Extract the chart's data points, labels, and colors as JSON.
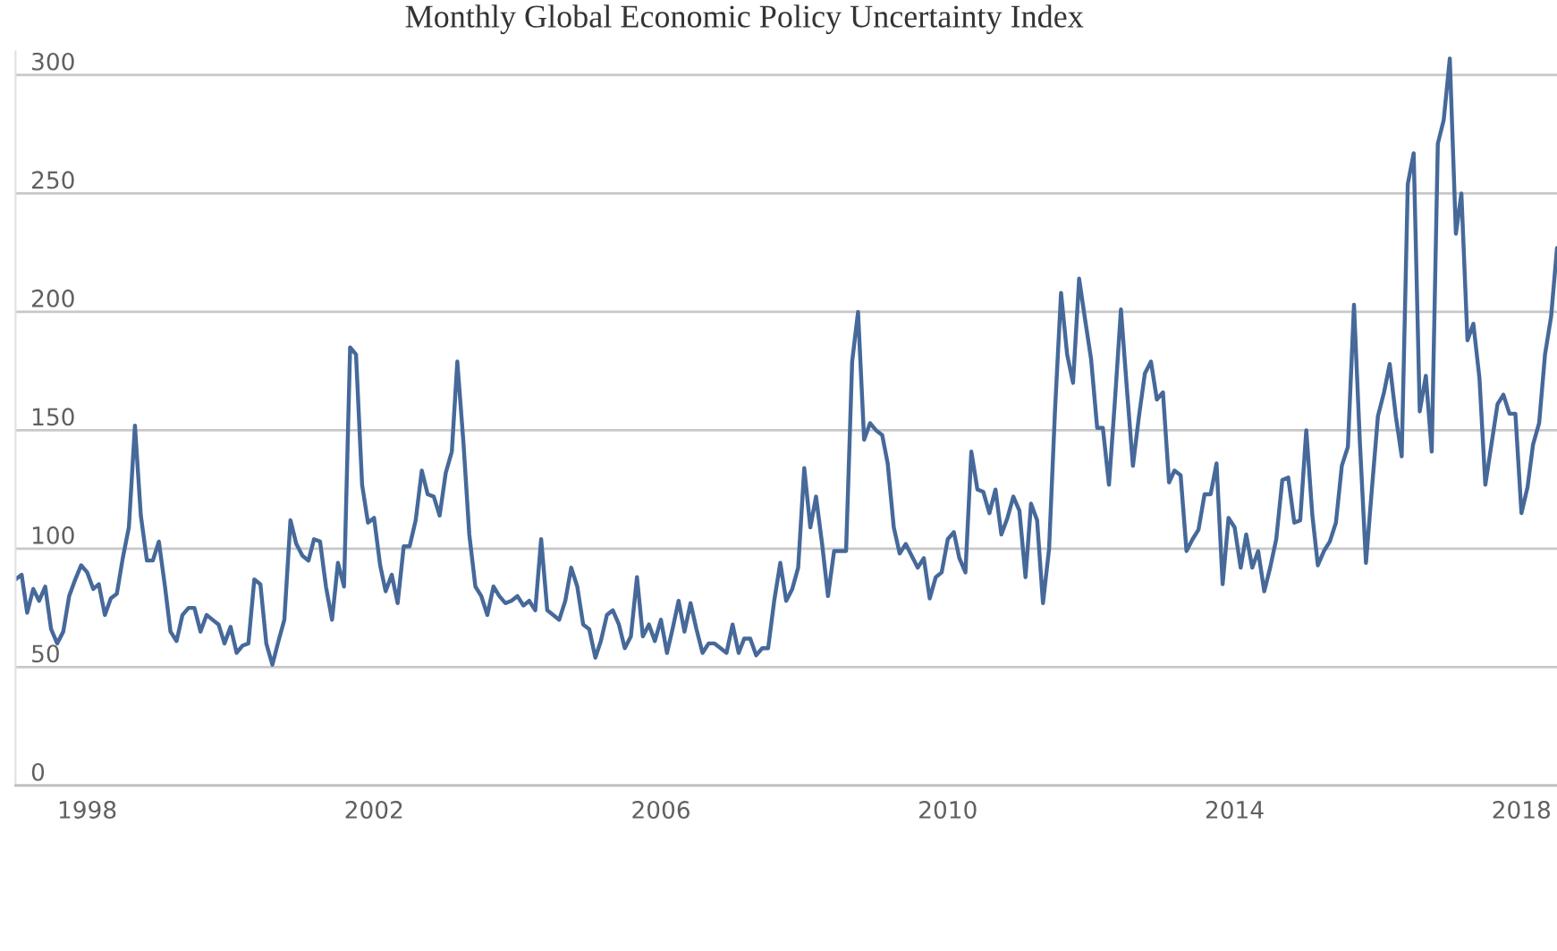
{
  "chart_data": {
    "type": "line",
    "title": "Monthly Global Economic Policy Uncertainty Index",
    "x": [
      "1997-01",
      "1997-02",
      "1997-03",
      "1997-04",
      "1997-05",
      "1997-06",
      "1997-07",
      "1997-08",
      "1997-09",
      "1997-10",
      "1997-11",
      "1997-12",
      "1998-01",
      "1998-02",
      "1998-03",
      "1998-04",
      "1998-05",
      "1998-06",
      "1998-07",
      "1998-08",
      "1998-09",
      "1998-10",
      "1998-11",
      "1998-12",
      "1999-01",
      "1999-02",
      "1999-03",
      "1999-04",
      "1999-05",
      "1999-06",
      "1999-07",
      "1999-08",
      "1999-09",
      "1999-10",
      "1999-11",
      "1999-12",
      "2000-01",
      "2000-02",
      "2000-03",
      "2000-04",
      "2000-05",
      "2000-06",
      "2000-07",
      "2000-08",
      "2000-09",
      "2000-10",
      "2000-11",
      "2000-12",
      "2001-01",
      "2001-02",
      "2001-03",
      "2001-04",
      "2001-05",
      "2001-06",
      "2001-07",
      "2001-08",
      "2001-09",
      "2001-10",
      "2001-11",
      "2001-12",
      "2002-01",
      "2002-02",
      "2002-03",
      "2002-04",
      "2002-05",
      "2002-06",
      "2002-07",
      "2002-08",
      "2002-09",
      "2002-10",
      "2002-11",
      "2002-12",
      "2003-01",
      "2003-02",
      "2003-03",
      "2003-04",
      "2003-05",
      "2003-06",
      "2003-07",
      "2003-08",
      "2003-09",
      "2003-10",
      "2003-11",
      "2003-12",
      "2004-01",
      "2004-02",
      "2004-03",
      "2004-04",
      "2004-05",
      "2004-06",
      "2004-07",
      "2004-08",
      "2004-09",
      "2004-10",
      "2004-11",
      "2004-12",
      "2005-01",
      "2005-02",
      "2005-03",
      "2005-04",
      "2005-05",
      "2005-06",
      "2005-07",
      "2005-08",
      "2005-09",
      "2005-10",
      "2005-11",
      "2005-12",
      "2006-01",
      "2006-02",
      "2006-03",
      "2006-04",
      "2006-05",
      "2006-06",
      "2006-07",
      "2006-08",
      "2006-09",
      "2006-10",
      "2006-11",
      "2006-12",
      "2007-01",
      "2007-02",
      "2007-03",
      "2007-04",
      "2007-05",
      "2007-06",
      "2007-07",
      "2007-08",
      "2007-09",
      "2007-10",
      "2007-11",
      "2007-12",
      "2008-01",
      "2008-02",
      "2008-03",
      "2008-04",
      "2008-05",
      "2008-06",
      "2008-07",
      "2008-08",
      "2008-09",
      "2008-10",
      "2008-11",
      "2008-12",
      "2009-01",
      "2009-02",
      "2009-03",
      "2009-04",
      "2009-05",
      "2009-06",
      "2009-07",
      "2009-08",
      "2009-09",
      "2009-10",
      "2009-11",
      "2009-12",
      "2010-01",
      "2010-02",
      "2010-03",
      "2010-04",
      "2010-05",
      "2010-06",
      "2010-07",
      "2010-08",
      "2010-09",
      "2010-10",
      "2010-11",
      "2010-12",
      "2011-01",
      "2011-02",
      "2011-03",
      "2011-04",
      "2011-05",
      "2011-06",
      "2011-07",
      "2011-08",
      "2011-09",
      "2011-10",
      "2011-11",
      "2011-12",
      "2012-01",
      "2012-02",
      "2012-03",
      "2012-04",
      "2012-05",
      "2012-06",
      "2012-07",
      "2012-08",
      "2012-09",
      "2012-10",
      "2012-11",
      "2012-12",
      "2013-01",
      "2013-02",
      "2013-03",
      "2013-04",
      "2013-05",
      "2013-06",
      "2013-07",
      "2013-08",
      "2013-09",
      "2013-10",
      "2013-11",
      "2013-12",
      "2014-01",
      "2014-02",
      "2014-03",
      "2014-04",
      "2014-05",
      "2014-06",
      "2014-07",
      "2014-08",
      "2014-09",
      "2014-10",
      "2014-11",
      "2014-12",
      "2015-01",
      "2015-02",
      "2015-03",
      "2015-04",
      "2015-05",
      "2015-06",
      "2015-07",
      "2015-08",
      "2015-09",
      "2015-10",
      "2015-11",
      "2015-12",
      "2016-01",
      "2016-02",
      "2016-03",
      "2016-04",
      "2016-05",
      "2016-06",
      "2016-07",
      "2016-08",
      "2016-09",
      "2016-10",
      "2016-11",
      "2016-12",
      "2017-01",
      "2017-02",
      "2017-03",
      "2017-04",
      "2017-05",
      "2017-06",
      "2017-07",
      "2017-08",
      "2017-09",
      "2017-10",
      "2017-11",
      "2017-12",
      "2018-01",
      "2018-02",
      "2018-03",
      "2018-04",
      "2018-05",
      "2018-06",
      "2018-07"
    ],
    "series": [
      {
        "color": "#46699a",
        "values": [
          87,
          89,
          73,
          83,
          78,
          84,
          66,
          60,
          65,
          80,
          87,
          93,
          90,
          83,
          85,
          72,
          79,
          81,
          96,
          109,
          152,
          114,
          95,
          95,
          103,
          84,
          65,
          61,
          72,
          75,
          75,
          65,
          72,
          70,
          68,
          60,
          67,
          56,
          59,
          60,
          87,
          85,
          60,
          51,
          61,
          70,
          112,
          102,
          97,
          95,
          104,
          103,
          84,
          70,
          94,
          84,
          185,
          182,
          127,
          111,
          113,
          93,
          82,
          89,
          77,
          101,
          101,
          112,
          133,
          123,
          122,
          114,
          132,
          141,
          179,
          145,
          106,
          84,
          80,
          72,
          84,
          80,
          77,
          78,
          80,
          76,
          78,
          74,
          104,
          74,
          72,
          70,
          78,
          92,
          84,
          68,
          66,
          54,
          61,
          72,
          74,
          68,
          58,
          63,
          88,
          63,
          68,
          61,
          70,
          56,
          66,
          78,
          65,
          77,
          66,
          56,
          60,
          60,
          58,
          56,
          68,
          56,
          62,
          62,
          55,
          58,
          58,
          78,
          94,
          78,
          83,
          92,
          134,
          109,
          122,
          102,
          80,
          99,
          99,
          99,
          179,
          200,
          146,
          153,
          150,
          148,
          136,
          109,
          98,
          102,
          97,
          92,
          96,
          79,
          88,
          90,
          104,
          107,
          96,
          90,
          141,
          125,
          124,
          115,
          125,
          106,
          113,
          122,
          116,
          88,
          119,
          112,
          77,
          100,
          158,
          208,
          182,
          170,
          214,
          197,
          180,
          151,
          151,
          127,
          162,
          201,
          168,
          135,
          156,
          174,
          179,
          163,
          166,
          128,
          133,
          131,
          99,
          104,
          108,
          123,
          123,
          136,
          85,
          113,
          109,
          92,
          106,
          92,
          99,
          82,
          92,
          104,
          129,
          130,
          111,
          112,
          150,
          114,
          93,
          99,
          103,
          111,
          135,
          143,
          203,
          145,
          94,
          125,
          156,
          166,
          178,
          156,
          139,
          254,
          267,
          158,
          173,
          141,
          271,
          281,
          307,
          233,
          250,
          188,
          195,
          172,
          127,
          144,
          161,
          165,
          157,
          157,
          115,
          126,
          144,
          153,
          182,
          198,
          227
        ]
      }
    ],
    "xlim": [
      "1997-01",
      "2018-07"
    ],
    "xticks": [
      "1998",
      "2002",
      "2006",
      "2010",
      "2014",
      "2018"
    ],
    "ylim": [
      0,
      310
    ],
    "yticks": [
      0,
      50,
      100,
      150,
      200,
      250,
      300
    ],
    "grid": "y",
    "marker": "none",
    "line_style": "solid"
  }
}
